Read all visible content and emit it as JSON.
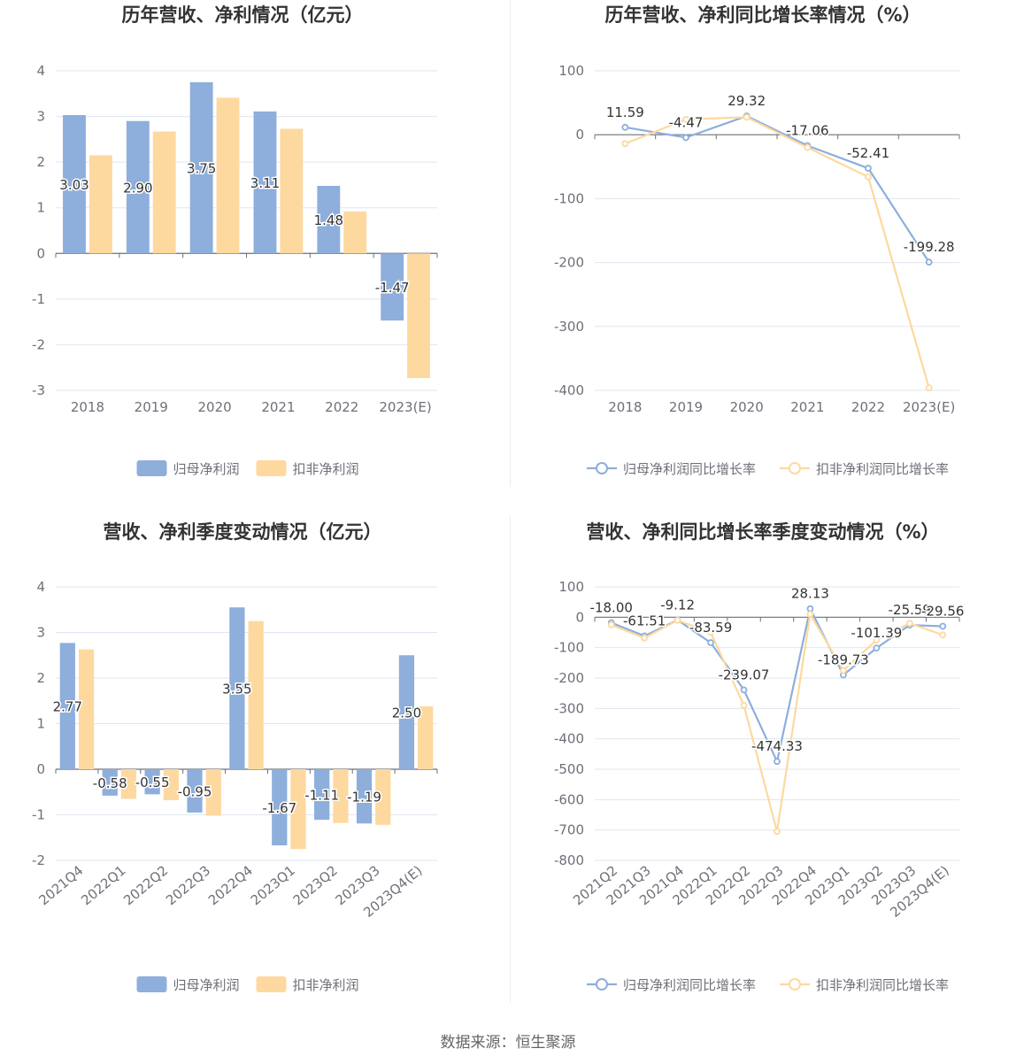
{
  "colors": {
    "net_profit": "#8eaedc",
    "deducted_net_profit": "#fdd9a0",
    "axis": "#6e7079",
    "grid": "#e0e6f1",
    "text": "#6e7079",
    "title": "#333333"
  },
  "source": "数据来源：恒生聚源",
  "chart_data": [
    {
      "type": "bar",
      "title": "历年营收、净利情况（亿元）",
      "categories": [
        "2018",
        "2019",
        "2020",
        "2021",
        "2022",
        "2023(E)"
      ],
      "ylim": [
        -3,
        4
      ],
      "yticks": [
        -3,
        -2,
        -1,
        0,
        1,
        2,
        3,
        4
      ],
      "series": [
        {
          "name": "归母净利润",
          "values": [
            3.03,
            2.9,
            3.75,
            3.11,
            1.48,
            -1.47
          ],
          "labels": [
            "3.03",
            "2.90",
            "3.75",
            "3.11",
            "1.48",
            "-1.47"
          ]
        },
        {
          "name": "扣非净利润",
          "values": [
            2.15,
            2.67,
            3.41,
            2.73,
            0.92,
            -2.73
          ]
        }
      ],
      "legend": "bottom-center",
      "grid": true
    },
    {
      "type": "line",
      "title": "历年营收、净利同比增长率情况（%）",
      "categories": [
        "2018",
        "2019",
        "2020",
        "2021",
        "2022",
        "2023(E)"
      ],
      "ylim": [
        -400,
        100
      ],
      "yticks": [
        -400,
        -300,
        -200,
        -100,
        0,
        100
      ],
      "series": [
        {
          "name": "归母净利润同比增长率",
          "values": [
            11.59,
            -4.47,
            29.32,
            -17.06,
            -52.41,
            -199.28
          ],
          "labels": [
            "11.59",
            "-4.47",
            "29.32",
            "-17.06",
            "-52.41",
            "-199.28"
          ]
        },
        {
          "name": "扣非净利润同比增长率",
          "values": [
            -14.0,
            24.0,
            27.5,
            -20.0,
            -66.0,
            -396.0
          ]
        }
      ],
      "legend": "bottom-center",
      "grid": true
    },
    {
      "type": "bar",
      "title": "营收、净利季度变动情况（亿元）",
      "categories": [
        "2021Q4",
        "2022Q1",
        "2022Q2",
        "2022Q3",
        "2022Q4",
        "2023Q1",
        "2023Q2",
        "2023Q3",
        "2023Q4(E)"
      ],
      "ylim": [
        -2,
        4
      ],
      "yticks": [
        -2,
        -1,
        0,
        1,
        2,
        3,
        4
      ],
      "series": [
        {
          "name": "归母净利润",
          "values": [
            2.77,
            -0.58,
            -0.55,
            -0.95,
            3.55,
            -1.67,
            -1.11,
            -1.19,
            2.5
          ],
          "labels": [
            "2.77",
            "-0.58",
            "-0.55",
            "-0.95",
            "3.55",
            "-1.67",
            "-1.11",
            "-1.19",
            "2.50"
          ]
        },
        {
          "name": "扣非净利润",
          "values": [
            2.63,
            -0.65,
            -0.68,
            -1.02,
            3.25,
            -1.75,
            -1.18,
            -1.22,
            1.38
          ]
        }
      ],
      "legend": "bottom-center",
      "grid": true
    },
    {
      "type": "line",
      "title": "营收、净利同比增长率季度变动情况（%）",
      "categories": [
        "2021Q2",
        "2021Q3",
        "2021Q4",
        "2022Q1",
        "2022Q2",
        "2022Q3",
        "2022Q4",
        "2023Q1",
        "2023Q2",
        "2023Q3",
        "2023Q4(E)"
      ],
      "ylim": [
        -800,
        100
      ],
      "yticks": [
        -800,
        -700,
        -600,
        -500,
        -400,
        -300,
        -200,
        -100,
        0,
        100
      ],
      "series": [
        {
          "name": "归母净利润同比增长率",
          "values": [
            -18.0,
            -61.51,
            -9.12,
            -83.59,
            -239.07,
            -474.33,
            28.13,
            -189.73,
            -101.39,
            -25.59,
            -29.56
          ],
          "labels": [
            "-18.00",
            "-61.51",
            "-9.12",
            "-83.59",
            "-239.07",
            "-474.33",
            "28.13",
            "-189.73",
            "-101.39",
            "-25.59",
            "-29.56"
          ]
        },
        {
          "name": "扣非净利润同比增长率",
          "values": [
            -25.0,
            -68.0,
            -10.0,
            -50.0,
            -290.0,
            -705.0,
            10.0,
            -175.0,
            -75.0,
            -20.0,
            -58.0
          ]
        }
      ],
      "legend": "bottom-center",
      "grid": true
    }
  ]
}
